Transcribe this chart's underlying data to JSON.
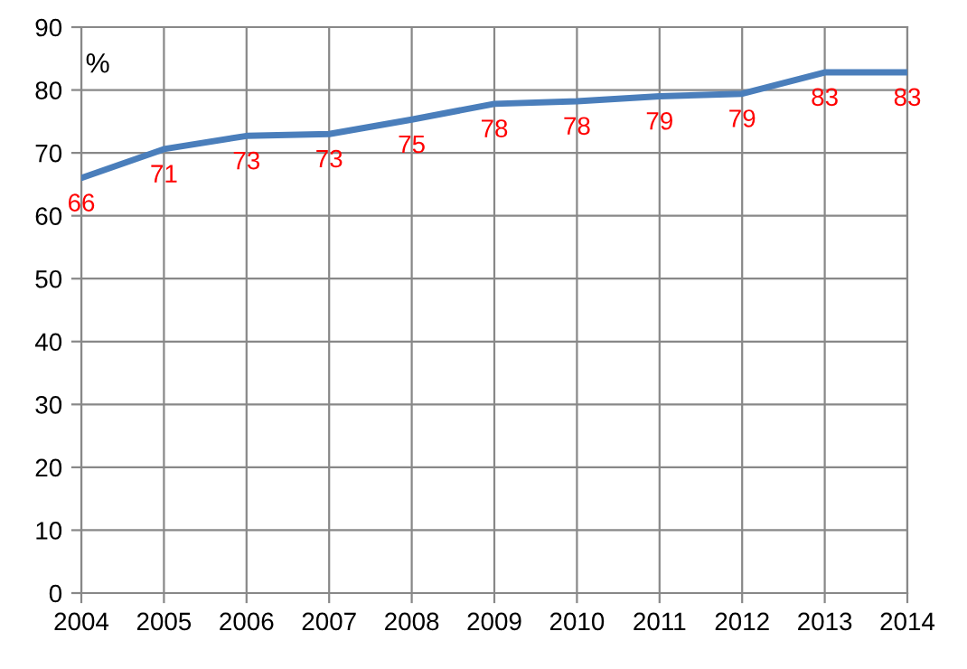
{
  "chart_data": {
    "type": "line",
    "ylabel": "%",
    "x": [
      2004,
      2005,
      2006,
      2007,
      2008,
      2009,
      2010,
      2011,
      2012,
      2013,
      2014
    ],
    "series": [
      {
        "color": "#4a7ebb",
        "values": [
          66,
          70.6,
          72.7,
          73,
          75.3,
          77.8,
          78.2,
          79,
          79.4,
          82.8,
          82.8
        ],
        "value_labels": [
          "66",
          "71",
          "73",
          "73",
          "75",
          "78",
          "78",
          "79",
          "79",
          "83",
          "83"
        ]
      }
    ],
    "xlim": [
      2004,
      2014
    ],
    "xticks": [
      2004,
      2005,
      2006,
      2007,
      2008,
      2009,
      2010,
      2011,
      2012,
      2013,
      2014
    ],
    "ylim": [
      0,
      90
    ],
    "yticks": [
      0,
      10,
      20,
      30,
      40,
      50,
      60,
      70,
      80,
      90
    ],
    "grid": true,
    "marker": "none",
    "line_style": "solid"
  }
}
